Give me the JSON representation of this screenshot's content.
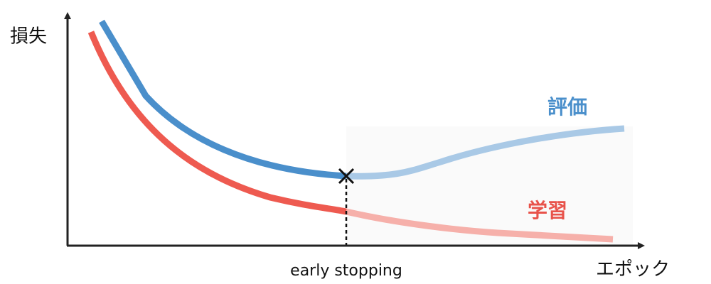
{
  "axes": {
    "y_label": "損失",
    "x_label": "エポック"
  },
  "annotation": "early stopping",
  "curves": [
    {
      "label": "評価"
    },
    {
      "label": "学習"
    }
  ]
}
